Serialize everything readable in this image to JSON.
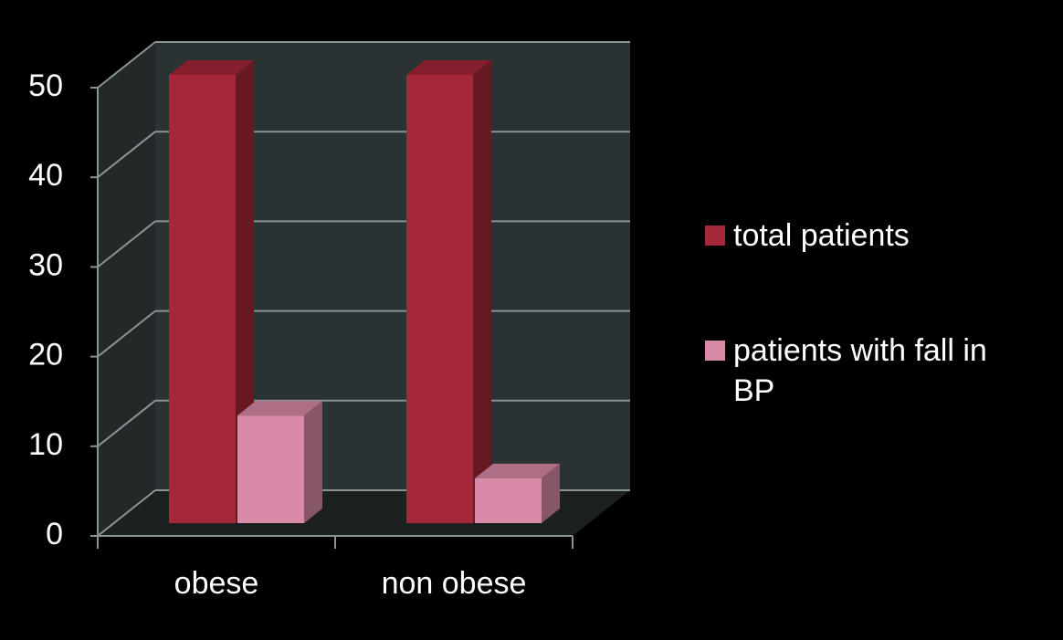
{
  "chart_data": {
    "type": "bar3d",
    "categories": [
      "obese",
      "non obese"
    ],
    "series": [
      {
        "name": "total patients",
        "color": "#a52838",
        "values": [
          50,
          50
        ]
      },
      {
        "name": "patients with fall in BP",
        "color": "#d98aa8",
        "values": [
          12,
          5
        ]
      }
    ],
    "ylim": [
      0,
      50
    ],
    "yticks": [
      0,
      10,
      20,
      30,
      40,
      50
    ],
    "grid": true,
    "legend": "right"
  }
}
